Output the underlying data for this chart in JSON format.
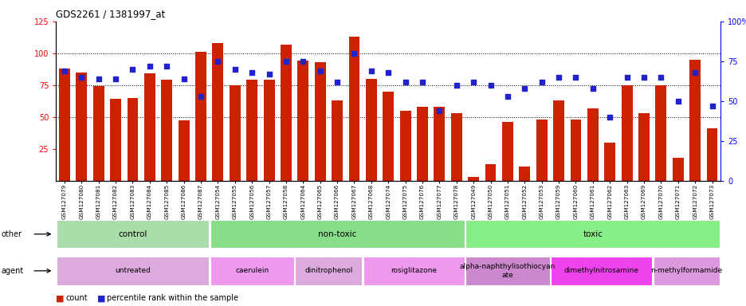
{
  "title": "GDS2261 / 1381997_at",
  "samples": [
    "GSM127079",
    "GSM127080",
    "GSM127081",
    "GSM127082",
    "GSM127083",
    "GSM127084",
    "GSM127085",
    "GSM127086",
    "GSM127087",
    "GSM127054",
    "GSM127055",
    "GSM127056",
    "GSM127057",
    "GSM127058",
    "GSM127064",
    "GSM127065",
    "GSM127066",
    "GSM127067",
    "GSM127068",
    "GSM127074",
    "GSM127075",
    "GSM127076",
    "GSM127077",
    "GSM127078",
    "GSM127049",
    "GSM127050",
    "GSM127051",
    "GSM127052",
    "GSM127053",
    "GSM127059",
    "GSM127060",
    "GSM127061",
    "GSM127062",
    "GSM127063",
    "GSM127069",
    "GSM127070",
    "GSM127071",
    "GSM127072",
    "GSM127073"
  ],
  "counts": [
    88,
    85,
    74,
    64,
    65,
    84,
    79,
    47,
    101,
    108,
    75,
    79,
    79,
    107,
    94,
    93,
    63,
    113,
    80,
    70,
    55,
    58,
    58,
    53,
    3,
    13,
    46,
    11,
    48,
    63,
    48,
    57,
    30,
    75,
    53,
    75,
    18,
    95,
    41
  ],
  "percentile_ranks": [
    69,
    65,
    64,
    64,
    70,
    72,
    72,
    64,
    53,
    75,
    70,
    68,
    67,
    75,
    75,
    69,
    62,
    80,
    69,
    68,
    62,
    62,
    44,
    60,
    62,
    60,
    53,
    58,
    62,
    65,
    65,
    58,
    40,
    65,
    65,
    65,
    50,
    68,
    47
  ],
  "bar_color": "#CC2200",
  "dot_color": "#2222CC",
  "other_groups": [
    {
      "label": "control",
      "start": 0,
      "end": 9,
      "color": "#AADDAA"
    },
    {
      "label": "non-toxic",
      "start": 9,
      "end": 24,
      "color": "#88DD88"
    },
    {
      "label": "toxic",
      "start": 24,
      "end": 39,
      "color": "#88EE88"
    }
  ],
  "agent_groups": [
    {
      "label": "untreated",
      "start": 0,
      "end": 9,
      "color": "#DDAADD"
    },
    {
      "label": "caerulein",
      "start": 9,
      "end": 14,
      "color": "#EE99EE"
    },
    {
      "label": "dinitrophenol",
      "start": 14,
      "end": 18,
      "color": "#DDAADD"
    },
    {
      "label": "rosiglitazone",
      "start": 18,
      "end": 24,
      "color": "#EE99EE"
    },
    {
      "label": "alpha-naphthylisothiocyan\nate",
      "start": 24,
      "end": 29,
      "color": "#CC88CC"
    },
    {
      "label": "dimethylnitrosamine",
      "start": 29,
      "end": 35,
      "color": "#EE44EE"
    },
    {
      "label": "n-methylformamide",
      "start": 35,
      "end": 39,
      "color": "#DD99DD"
    }
  ]
}
